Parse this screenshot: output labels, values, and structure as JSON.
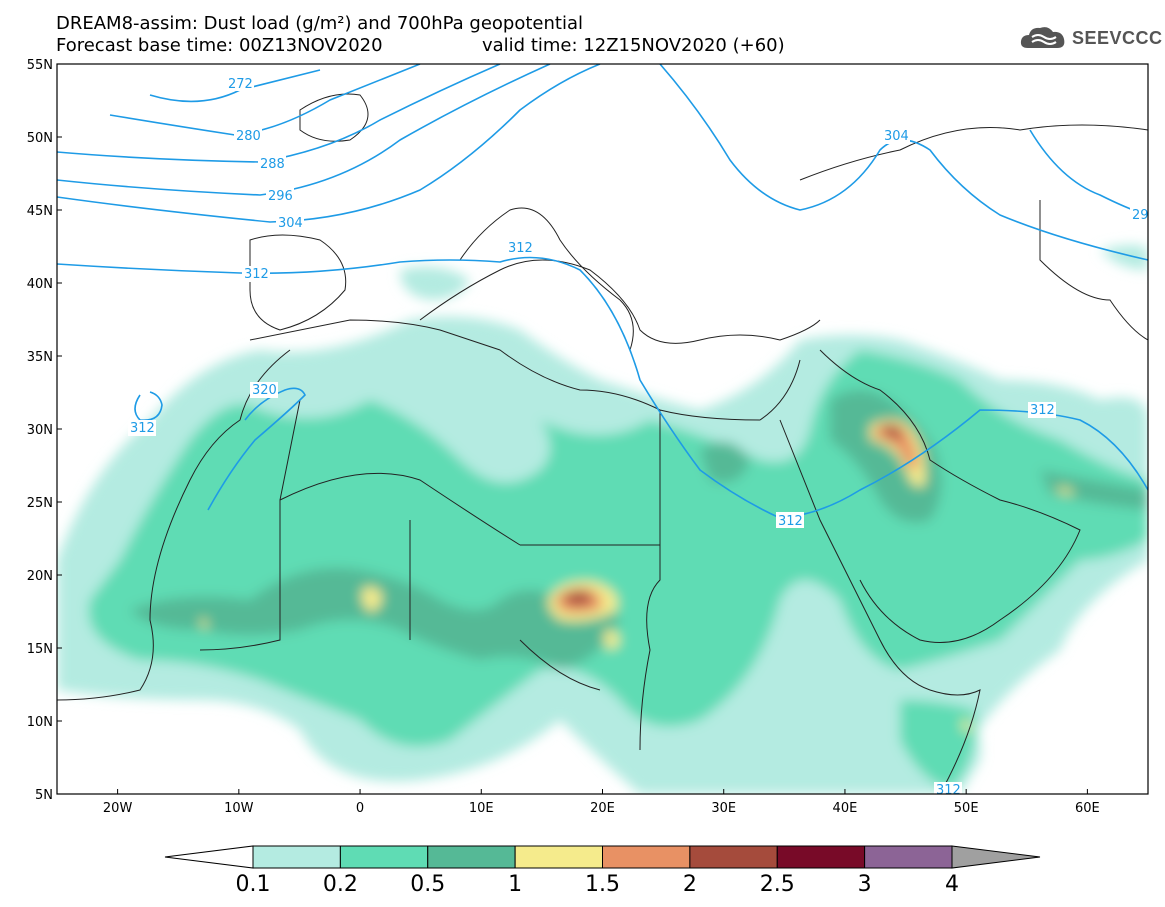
{
  "header": {
    "title": "DREAM8-assim: Dust load (g/m²) and 700hPa geopotential",
    "base_time": "Forecast base time: 00Z13NOV2020",
    "valid_time": "valid time: 12Z15NOV2020 (+60)"
  },
  "logo": {
    "text": "SEEVCCC",
    "icon": "cloud-icon"
  },
  "map": {
    "lon_range": [
      -25,
      65
    ],
    "lat_range": [
      5,
      55
    ],
    "lat_labels": [
      "55N",
      "50N",
      "45N",
      "40N",
      "35N",
      "30N",
      "25N",
      "20N",
      "15N",
      "10N",
      "5N"
    ],
    "lon_labels": [
      "20W",
      "10W",
      "0",
      "10E",
      "20E",
      "30E",
      "40E",
      "50E",
      "60E"
    ],
    "contour_labels": [
      "272",
      "280",
      "288",
      "296",
      "304",
      "312",
      "312",
      "312",
      "312",
      "320",
      "304",
      "312",
      "312",
      "29"
    ]
  },
  "colorbar": {
    "ticks": [
      "0.1",
      "0.2",
      "0.5",
      "1",
      "1.5",
      "2",
      "2.5",
      "3",
      "4"
    ],
    "colors": [
      "#ffffff",
      "#b4ebe1",
      "#5fdcb4",
      "#55b996",
      "#f5eb8c",
      "#e89164",
      "#a54b3c",
      "#780a28",
      "#8c6496",
      "#a0a0a0"
    ]
  },
  "colors": {
    "contour": "#1e9be6",
    "border": "#222222"
  }
}
